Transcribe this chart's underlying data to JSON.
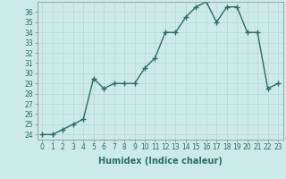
{
  "x": [
    0,
    1,
    2,
    3,
    4,
    5,
    6,
    7,
    8,
    9,
    10,
    11,
    12,
    13,
    14,
    15,
    16,
    17,
    18,
    19,
    20,
    21,
    22,
    23
  ],
  "y": [
    24,
    24,
    24.5,
    25,
    25.5,
    29.5,
    28.5,
    29,
    29,
    29,
    30.5,
    31.5,
    34,
    34,
    35.5,
    36.5,
    37,
    35,
    36.5,
    36.5,
    34,
    34,
    28.5,
    29
  ],
  "line_color": "#2a6e65",
  "marker": "+",
  "marker_size": 4,
  "marker_lw": 1.0,
  "bg_color": "#cceae8",
  "grid_color": "#b8d8d5",
  "xlabel": "Humidex (Indice chaleur)",
  "xlim": [
    -0.5,
    23.5
  ],
  "ylim": [
    23.5,
    37.0
  ],
  "yticks": [
    24,
    25,
    26,
    27,
    28,
    29,
    30,
    31,
    32,
    33,
    34,
    35,
    36
  ],
  "xticks": [
    0,
    1,
    2,
    3,
    4,
    5,
    6,
    7,
    8,
    9,
    10,
    11,
    12,
    13,
    14,
    15,
    16,
    17,
    18,
    19,
    20,
    21,
    22,
    23
  ],
  "tick_label_fontsize": 5.5,
  "xlabel_fontsize": 7.0,
  "line_width": 1.0
}
